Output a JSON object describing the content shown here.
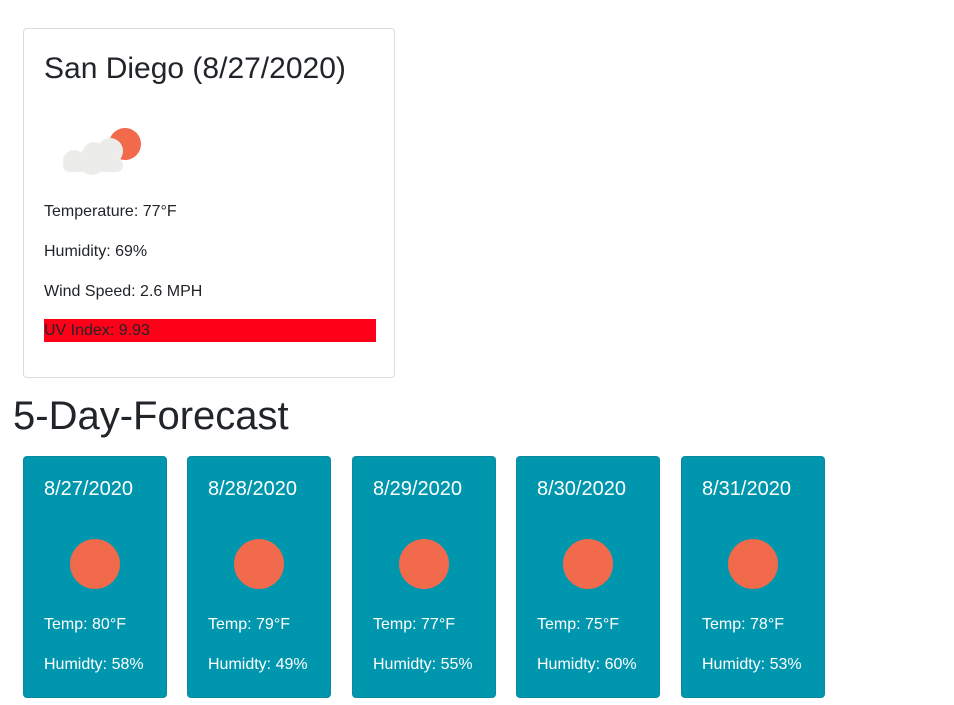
{
  "current": {
    "title": "San Diego (8/27/2020)",
    "icon": "partly-cloudy-icon",
    "temperature": "Temperature: 77°F",
    "humidity": "Humidity: 69%",
    "wind_speed": "Wind Speed: 2.6 MPH",
    "uv_index": "UV Index: 9.93",
    "uv_color": "#ff0019"
  },
  "forecast": {
    "heading": "5-Day-Forecast",
    "card_color": "#0097ae",
    "days": [
      {
        "date": "8/27/2020",
        "icon": "sun-icon",
        "temp": "Temp: 80°F",
        "humidity": "Humidty: 58%"
      },
      {
        "date": "8/28/2020",
        "icon": "sun-icon",
        "temp": "Temp: 79°F",
        "humidity": "Humidty: 49%"
      },
      {
        "date": "8/29/2020",
        "icon": "sun-icon",
        "temp": "Temp: 77°F",
        "humidity": "Humidty: 55%"
      },
      {
        "date": "8/30/2020",
        "icon": "sun-icon",
        "temp": "Temp: 75°F",
        "humidity": "Humidty: 60%"
      },
      {
        "date": "8/31/2020",
        "icon": "sun-icon",
        "temp": "Temp: 78°F",
        "humidity": "Humidty: 53%"
      }
    ]
  }
}
